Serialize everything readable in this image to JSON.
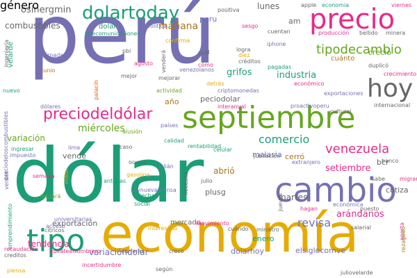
{
  "palette": {
    "purple": "#7570b3",
    "green": "#1b9e77",
    "orange": "#d95f02",
    "pink": "#e7298a",
    "lime": "#66a61e",
    "gold": "#e6ab02",
    "brown": "#a6761d",
    "gray": "#666666"
  },
  "words": [
    {
      "text": "perú",
      "color": "purple"
    },
    {
      "text": "dólar",
      "color": "green"
    },
    {
      "text": "economía",
      "color": "gold"
    },
    {
      "text": "septiembre",
      "color": "lime"
    },
    {
      "text": "cambio",
      "color": "purple"
    },
    {
      "text": "precio",
      "color": "pink"
    },
    {
      "text": "tipo",
      "color": "green"
    },
    {
      "text": "hoy",
      "color": "gray"
    },
    {
      "text": "dolartoday",
      "color": "green"
    },
    {
      "text": "preciodeldólar",
      "color": "pink"
    },
    {
      "text": "tipodecambio",
      "color": "lime"
    },
    {
      "text": "venezuela",
      "color": "pink"
    },
    {
      "text": "revisa",
      "color": "purple"
    },
    {
      "text": "comercio",
      "color": "green"
    },
    {
      "text": "osinergmin",
      "color": "gray"
    },
    {
      "text": "combustibles",
      "color": "gray"
    },
    {
      "text": "mañana",
      "color": "brown"
    },
    {
      "text": "miércoles",
      "color": "lime"
    },
    {
      "text": "lunes",
      "color": "gray"
    },
    {
      "text": "setiembre",
      "color": "pink"
    },
    {
      "text": "tendencia",
      "color": "pink"
    },
    {
      "text": "arándanos",
      "color": "pink"
    },
    {
      "text": "grifos",
      "color": "green"
    },
    {
      "text": "industria",
      "color": "green"
    },
    {
      "text": "variación",
      "color": "lime"
    },
    {
      "text": "exportación",
      "color": "gray"
    },
    {
      "text": "mercado",
      "color": "gray"
    },
    {
      "text": "variacióndolar",
      "color": "purple"
    },
    {
      "text": "dolarhoy",
      "color": "purple"
    },
    {
      "text": "elsiglocomve",
      "color": "purple"
    },
    {
      "text": "cotiza",
      "color": "gray"
    },
    {
      "text": "enero",
      "color": "green"
    },
    {
      "text": "martes",
      "color": "gray"
    },
    {
      "text": "abrió",
      "color": "brown"
    },
    {
      "text": "plusg",
      "color": "gray"
    },
    {
      "text": "cerró",
      "color": "brown"
    },
    {
      "text": "bcr",
      "color": "gray"
    },
    {
      "text": "malasia",
      "color": "purple"
    },
    {
      "text": "peciodolar",
      "color": "gray"
    },
    {
      "text": "peru",
      "color": "purple"
    },
    {
      "text": "dolar",
      "color": "green"
    },
    {
      "text": "creció",
      "color": "lime"
    },
    {
      "text": "cuánto",
      "color": "brown"
    },
    {
      "text": "año",
      "color": "brown"
    },
    {
      "text": "vende",
      "color": "gray"
    },
    {
      "text": "am",
      "color": "gray"
    },
    {
      "text": "velarde",
      "color": "green"
    },
    {
      "text": "jornada",
      "color": "purple"
    },
    {
      "text": "junio",
      "color": "brown"
    },
    {
      "text": "nuevo",
      "color": "green"
    },
    {
      "text": "economia",
      "color": "green"
    },
    {
      "text": "viernes",
      "color": "pink"
    },
    {
      "text": "minera",
      "color": "gray"
    },
    {
      "text": "bellido",
      "color": "gray"
    },
    {
      "text": "producción",
      "color": "pink"
    },
    {
      "text": "apple",
      "color": "gray"
    },
    {
      "text": "positiva",
      "color": "gray"
    },
    {
      "text": "sesgo",
      "color": "pink"
    },
    {
      "text": "cuentan",
      "color": "gray"
    },
    {
      "text": "iphone",
      "color": "purple"
    },
    {
      "text": "logra",
      "color": "gray"
    },
    {
      "text": "diez",
      "color": "gold"
    },
    {
      "text": "cuál",
      "color": "gray"
    },
    {
      "text": "créditos",
      "color": "gray"
    },
    {
      "text": "cómo",
      "color": "pink"
    },
    {
      "text": "pagadas",
      "color": "green"
    },
    {
      "text": "detrás",
      "color": "gold"
    },
    {
      "text": "criptomonedas",
      "color": "purple"
    },
    {
      "text": "interanual",
      "color": "pink"
    },
    {
      "text": "proactivoperu",
      "color": "purple"
    },
    {
      "text": "económico",
      "color": "pink"
    },
    {
      "text": "exportaciones",
      "color": "purple"
    },
    {
      "text": "crecimiento",
      "color": "pink"
    },
    {
      "text": "duplicó",
      "color": "gray"
    },
    {
      "text": "internacional",
      "color": "gray"
    },
    {
      "text": "cultural",
      "color": "gray"
    },
    {
      "text": "telecomunicaciones",
      "color": "green"
    },
    {
      "text": "política",
      "color": "purple"
    },
    {
      "text": "confirma",
      "color": "gold"
    },
    {
      "text": "pbi",
      "color": "gray"
    },
    {
      "text": "agosto",
      "color": "pink"
    },
    {
      "text": "venezolanos",
      "color": "purple"
    },
    {
      "text": "venderá",
      "color": "gray"
    },
    {
      "text": "mejorar",
      "color": "gray"
    },
    {
      "text": "mejor",
      "color": "gray"
    },
    {
      "text": "actividad",
      "color": "lime"
    },
    {
      "text": "palacín",
      "color": "orange"
    },
    {
      "text": "dólares",
      "color": "purple"
    },
    {
      "text": "ingeniería",
      "color": "gray"
    },
    {
      "text": "preciodeloscombustibles",
      "color": "purple"
    },
    {
      "text": "ingresar",
      "color": "green"
    },
    {
      "text": "impuesto",
      "color": "purple"
    },
    {
      "text": "lima",
      "color": "purple"
    },
    {
      "text": "alusión",
      "color": "lime"
    },
    {
      "text": "países",
      "color": "purple"
    },
    {
      "text": "caso",
      "color": "gray"
    },
    {
      "text": "calidad",
      "color": "green"
    },
    {
      "text": "rentabilidad",
      "color": "green"
    },
    {
      "text": "celular",
      "color": "green"
    },
    {
      "text": "extranjero",
      "color": "purple"
    },
    {
      "text": "jubilación",
      "color": "gray"
    },
    {
      "text": "banco",
      "color": "gray"
    },
    {
      "text": "migrantes",
      "color": "pink"
    },
    {
      "text": "sabe",
      "color": "gray"
    },
    {
      "text": "ocupa",
      "color": "gray"
    },
    {
      "text": "julián",
      "color": "purple"
    },
    {
      "text": "gasolina",
      "color": "gold"
    },
    {
      "text": "antenas",
      "color": "green"
    },
    {
      "text": "semana",
      "color": "pink"
    },
    {
      "text": "ventas",
      "color": "purple"
    },
    {
      "text": "iniciará",
      "color": "lime"
    },
    {
      "text": "india",
      "color": "gold"
    },
    {
      "text": "soynuevaprensa",
      "color": "purple"
    },
    {
      "text": "brecha",
      "color": "green"
    },
    {
      "text": "social",
      "color": "green"
    },
    {
      "text": "necesita",
      "color": "gray"
    },
    {
      "text": "julio",
      "color": "gray"
    },
    {
      "text": "jueves",
      "color": "gray"
    },
    {
      "text": "hagan",
      "color": "pink"
    },
    {
      "text": "económica",
      "color": "purple"
    },
    {
      "text": "puesto",
      "color": "gray"
    },
    {
      "text": "aporta",
      "color": "pink"
    },
    {
      "text": "rezagado",
      "color": "brown"
    },
    {
      "text": "emprendimiento",
      "color": "green"
    },
    {
      "text": "universitarias",
      "color": "purple"
    },
    {
      "text": "acceso",
      "color": "purple"
    },
    {
      "text": "cítricos",
      "color": "gray"
    },
    {
      "text": "interesado",
      "color": "gold"
    },
    {
      "text": "movimiento",
      "color": "pink"
    },
    {
      "text": "cuándo",
      "color": "gray"
    },
    {
      "text": "ministro",
      "color": "gray"
    },
    {
      "text": "salarial",
      "color": "gray"
    },
    {
      "text": "recaudación",
      "color": "pink"
    },
    {
      "text": "creditos",
      "color": "gray"
    },
    {
      "text": "quitateelsombrero",
      "color": "pink"
    },
    {
      "text": "carreras",
      "color": "gray"
    },
    {
      "text": "crece",
      "color": "gray"
    },
    {
      "text": "piensa",
      "color": "gold"
    },
    {
      "text": "incertidumbre",
      "color": "pink"
    },
    {
      "text": "según",
      "color": "gray"
    },
    {
      "text": "juliovelarde",
      "color": "gray"
    },
    {
      "text": "género",
      "color": "purple"
    }
  ]
}
